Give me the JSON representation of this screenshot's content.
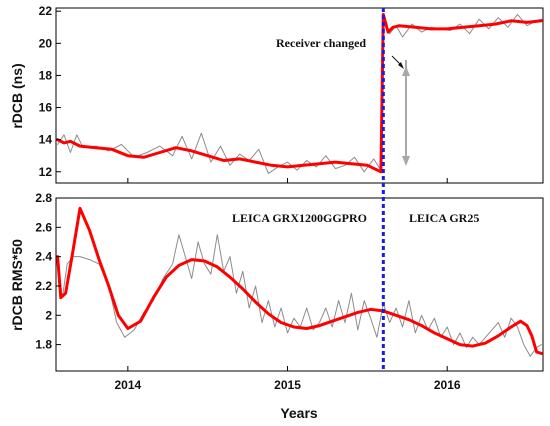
{
  "chart_data": [
    {
      "type": "line",
      "ylabel": "rDCB (ns)",
      "xlim": [
        2013.55,
        2016.6
      ],
      "ylim": [
        11.3,
        22.2
      ],
      "yticks": [
        "12",
        "14",
        "16",
        "18",
        "20",
        "22"
      ],
      "grid": false,
      "annotations": {
        "arrow_label": "Receiver changed"
      },
      "series": [
        {
          "role": "raw",
          "color": "#8c8c8c",
          "x": [
            2013.56,
            2013.6,
            2013.64,
            2013.68,
            2013.72,
            2013.8,
            2013.88,
            2013.96,
            2014.04,
            2014.12,
            2014.2,
            2014.28,
            2014.34,
            2014.4,
            2014.46,
            2014.52,
            2014.58,
            2014.64,
            2014.7,
            2014.76,
            2014.82,
            2014.88,
            2014.94,
            2015.0,
            2015.06,
            2015.12,
            2015.18,
            2015.24,
            2015.3,
            2015.36,
            2015.42,
            2015.48,
            2015.54,
            2015.585,
            2015.6,
            2015.64,
            2015.68,
            2015.72,
            2015.78,
            2015.84,
            2015.9,
            2015.96,
            2016.02,
            2016.08,
            2016.14,
            2016.2,
            2016.26,
            2016.32,
            2016.38,
            2016.44,
            2016.5,
            2016.56,
            2016.59
          ],
          "y": [
            13.7,
            14.3,
            13.2,
            14.3,
            13.5,
            13.6,
            13.3,
            13.7,
            12.9,
            13.2,
            13.6,
            13.0,
            14.2,
            12.8,
            14.4,
            12.6,
            13.6,
            12.4,
            13.1,
            12.7,
            13.4,
            11.9,
            12.3,
            12.6,
            12.1,
            12.7,
            12.3,
            13.0,
            12.2,
            12.4,
            12.9,
            12.0,
            12.8,
            12.1,
            21.6,
            20.6,
            21.1,
            20.4,
            21.2,
            20.7,
            21.0,
            20.9,
            20.8,
            21.2,
            20.6,
            21.5,
            20.9,
            21.6,
            21.0,
            21.8,
            21.1,
            21.4,
            21.5
          ]
        },
        {
          "role": "fit",
          "color": "#ff0000",
          "x": [
            2013.56,
            2013.6,
            2013.64,
            2013.7,
            2013.8,
            2013.9,
            2014.0,
            2014.1,
            2014.2,
            2014.3,
            2014.4,
            2014.5,
            2014.6,
            2014.7,
            2014.8,
            2014.9,
            2015.0,
            2015.1,
            2015.2,
            2015.3,
            2015.4,
            2015.5,
            2015.585,
            2015.6,
            2015.63,
            2015.66,
            2015.7,
            2015.8,
            2015.9,
            2016.0,
            2016.1,
            2016.2,
            2016.3,
            2016.4,
            2016.5,
            2016.59
          ],
          "y": [
            14.0,
            13.8,
            13.9,
            13.6,
            13.5,
            13.4,
            13.0,
            12.9,
            13.2,
            13.5,
            13.3,
            13.0,
            12.7,
            12.8,
            12.6,
            12.4,
            12.3,
            12.4,
            12.5,
            12.6,
            12.5,
            12.4,
            12.0,
            21.8,
            20.7,
            21.0,
            21.1,
            21.0,
            20.9,
            20.9,
            21.0,
            21.1,
            21.2,
            21.4,
            21.3,
            21.4
          ]
        }
      ]
    },
    {
      "type": "line",
      "ylabel": "rDCB RMS*50",
      "xlabel": "Years",
      "xlim": [
        2013.55,
        2016.6
      ],
      "ylim": [
        1.62,
        2.8
      ],
      "yticks": [
        "1.8",
        "2",
        "2.2",
        "2.4",
        "2.6",
        "2.8"
      ],
      "xticks": [
        {
          "value": 2014,
          "label": "2014"
        },
        {
          "value": 2015,
          "label": "2015"
        },
        {
          "value": 2016,
          "label": "2016"
        }
      ],
      "grid": false,
      "annotations": {
        "left_region_label": "LEICA GRX1200GGPRO",
        "right_region_label": "LEICA GR25"
      },
      "receiver_change_x": 2015.6,
      "series": [
        {
          "role": "raw",
          "color": "#8c8c8c",
          "x": [
            2013.56,
            2013.59,
            2013.62,
            2013.66,
            2013.7,
            2013.76,
            2013.82,
            2013.88,
            2013.93,
            2013.98,
            2014.04,
            2014.1,
            2014.16,
            2014.22,
            2014.28,
            2014.32,
            2014.36,
            2014.4,
            2014.44,
            2014.48,
            2014.52,
            2014.56,
            2014.6,
            2014.64,
            2014.68,
            2014.72,
            2014.76,
            2014.8,
            2014.84,
            2014.88,
            2014.92,
            2014.96,
            2015.0,
            2015.04,
            2015.08,
            2015.12,
            2015.16,
            2015.2,
            2015.24,
            2015.28,
            2015.32,
            2015.36,
            2015.4,
            2015.44,
            2015.48,
            2015.52,
            2015.56,
            2015.6,
            2015.64,
            2015.68,
            2015.72,
            2015.76,
            2015.8,
            2015.84,
            2015.88,
            2015.92,
            2015.96,
            2016.0,
            2016.04,
            2016.08,
            2016.12,
            2016.16,
            2016.2,
            2016.24,
            2016.28,
            2016.32,
            2016.36,
            2016.4,
            2016.44,
            2016.48,
            2016.52,
            2016.56,
            2016.59
          ],
          "y": [
            2.38,
            2.12,
            2.35,
            2.4,
            2.4,
            2.38,
            2.35,
            2.2,
            1.95,
            1.85,
            1.9,
            2.02,
            2.1,
            2.25,
            2.35,
            2.55,
            2.4,
            2.25,
            2.5,
            2.35,
            2.28,
            2.55,
            2.3,
            2.4,
            2.15,
            2.3,
            2.05,
            2.2,
            1.95,
            2.1,
            1.92,
            2.05,
            1.88,
            1.98,
            1.92,
            2.05,
            1.9,
            1.95,
            2.05,
            1.92,
            2.1,
            1.95,
            2.15,
            1.9,
            2.1,
            1.98,
            1.85,
            2.08,
            1.95,
            2.05,
            1.92,
            2.1,
            1.88,
            2.0,
            1.9,
            1.98,
            1.85,
            1.92,
            1.8,
            1.88,
            1.78,
            1.85,
            1.8,
            1.85,
            1.9,
            1.95,
            1.85,
            1.98,
            1.92,
            1.8,
            1.72,
            1.78,
            1.8
          ]
        },
        {
          "role": "fit",
          "color": "#ff0000",
          "x": [
            2013.56,
            2013.58,
            2013.61,
            2013.65,
            2013.7,
            2013.76,
            2013.82,
            2013.88,
            2013.94,
            2014.0,
            2014.08,
            2014.16,
            2014.24,
            2014.32,
            2014.4,
            2014.48,
            2014.56,
            2014.64,
            2014.72,
            2014.8,
            2014.88,
            2014.96,
            2015.04,
            2015.12,
            2015.2,
            2015.28,
            2015.36,
            2015.44,
            2015.52,
            2015.6,
            2015.68,
            2015.76,
            2015.84,
            2015.92,
            2016.0,
            2016.08,
            2016.16,
            2016.24,
            2016.32,
            2016.4,
            2016.46,
            2016.5,
            2016.53,
            2016.56,
            2016.59
          ],
          "y": [
            2.4,
            2.12,
            2.15,
            2.4,
            2.73,
            2.58,
            2.38,
            2.2,
            2.0,
            1.91,
            1.96,
            2.12,
            2.26,
            2.34,
            2.38,
            2.37,
            2.33,
            2.26,
            2.18,
            2.09,
            2.01,
            1.95,
            1.92,
            1.91,
            1.93,
            1.96,
            1.99,
            2.02,
            2.04,
            2.03,
            2.0,
            1.97,
            1.93,
            1.88,
            1.84,
            1.8,
            1.79,
            1.81,
            1.86,
            1.92,
            1.96,
            1.93,
            1.86,
            1.75,
            1.74
          ]
        }
      ]
    }
  ]
}
